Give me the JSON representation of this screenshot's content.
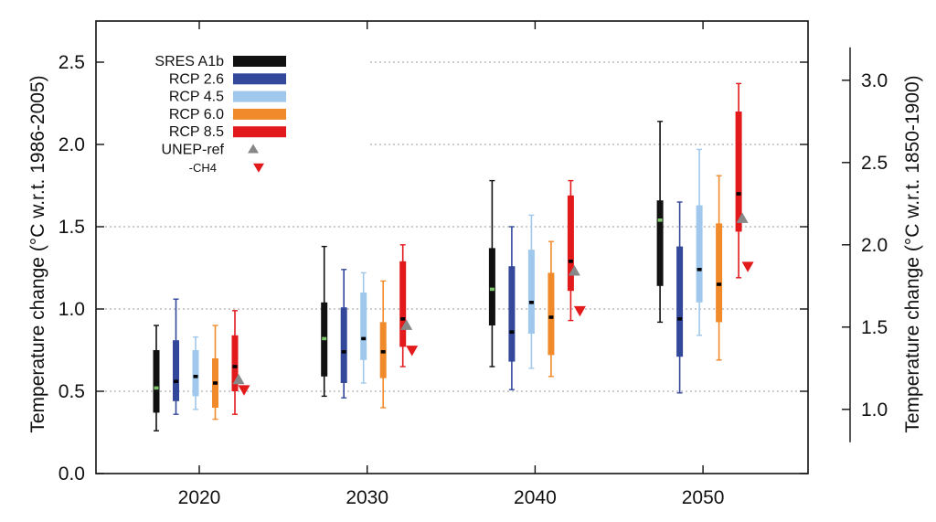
{
  "chart_data": {
    "type": "boxplot",
    "xlabel": "",
    "ylabel": "Temperature change (°C w.r.t. 1986-2005)",
    "ylabel_right": "Temperature change (°C w.r.t. 1850-1900)",
    "ylim": [
      0.0,
      2.75
    ],
    "yticks": [
      "0.0",
      "0.5",
      "1.0",
      "1.5",
      "2.0",
      "2.5"
    ],
    "ytick_values": [
      0.0,
      0.5,
      1.0,
      1.5,
      2.0,
      2.5
    ],
    "right_ylim": [
      0.61,
      3.36
    ],
    "right_yticks": [
      "1.0",
      "1.5",
      "2.0",
      "2.5",
      "3.0"
    ],
    "right_ytick_values": [
      1.0,
      1.5,
      2.0,
      2.5,
      3.0
    ],
    "right_axis_range": [
      0.8,
      3.2
    ],
    "categories": [
      "2020",
      "2030",
      "2040",
      "2050"
    ],
    "grid": true,
    "legend_position": "top-left",
    "series": [
      {
        "name": "SRES A1b",
        "color": "#111111",
        "median_color": "#7cc46a",
        "boxes": [
          {
            "min": 0.26,
            "q1": 0.37,
            "median": 0.52,
            "q3": 0.75,
            "max": 0.9
          },
          {
            "min": 0.47,
            "q1": 0.59,
            "median": 0.82,
            "q3": 1.04,
            "max": 1.38
          },
          {
            "min": 0.65,
            "q1": 0.9,
            "median": 1.12,
            "q3": 1.37,
            "max": 1.78
          },
          {
            "min": 0.92,
            "q1": 1.14,
            "median": 1.54,
            "q3": 1.66,
            "max": 2.14
          }
        ]
      },
      {
        "name": "RCP 2.6",
        "color": "#34489b",
        "median_color": "#000000",
        "boxes": [
          {
            "min": 0.36,
            "q1": 0.44,
            "median": 0.56,
            "q3": 0.81,
            "max": 1.06
          },
          {
            "min": 0.46,
            "q1": 0.55,
            "median": 0.74,
            "q3": 1.01,
            "max": 1.24
          },
          {
            "min": 0.51,
            "q1": 0.68,
            "median": 0.86,
            "q3": 1.26,
            "max": 1.5
          },
          {
            "min": 0.49,
            "q1": 0.71,
            "median": 0.94,
            "q3": 1.38,
            "max": 1.65
          }
        ]
      },
      {
        "name": "RCP 4.5",
        "color": "#9fc8ec",
        "median_color": "#000000",
        "boxes": [
          {
            "min": 0.39,
            "q1": 0.47,
            "median": 0.59,
            "q3": 0.75,
            "max": 0.83
          },
          {
            "min": 0.55,
            "q1": 0.69,
            "median": 0.82,
            "q3": 1.1,
            "max": 1.22
          },
          {
            "min": 0.64,
            "q1": 0.85,
            "median": 1.04,
            "q3": 1.36,
            "max": 1.57
          },
          {
            "min": 0.84,
            "q1": 1.04,
            "median": 1.24,
            "q3": 1.63,
            "max": 1.97
          }
        ]
      },
      {
        "name": "RCP 6.0",
        "color": "#f08a2b",
        "median_color": "#000000",
        "boxes": [
          {
            "min": 0.33,
            "q1": 0.4,
            "median": 0.55,
            "q3": 0.7,
            "max": 0.9
          },
          {
            "min": 0.4,
            "q1": 0.58,
            "median": 0.74,
            "q3": 0.92,
            "max": 1.17
          },
          {
            "min": 0.59,
            "q1": 0.72,
            "median": 0.95,
            "q3": 1.22,
            "max": 1.41
          },
          {
            "min": 0.69,
            "q1": 0.92,
            "median": 1.15,
            "q3": 1.52,
            "max": 1.81
          }
        ]
      },
      {
        "name": "RCP 8.5",
        "color": "#e31a1c",
        "median_color": "#000000",
        "boxes": [
          {
            "min": 0.36,
            "q1": 0.5,
            "median": 0.65,
            "q3": 0.84,
            "max": 0.99
          },
          {
            "min": 0.65,
            "q1": 0.77,
            "median": 0.94,
            "q3": 1.29,
            "max": 1.39
          },
          {
            "min": 0.93,
            "q1": 1.11,
            "median": 1.29,
            "q3": 1.69,
            "max": 1.78
          },
          {
            "min": 1.19,
            "q1": 1.47,
            "median": 1.7,
            "q3": 2.2,
            "max": 2.37
          }
        ]
      }
    ],
    "markers": [
      {
        "name": "UNEP-ref",
        "shape": "triangle-up",
        "color": "#888888",
        "values": [
          0.57,
          0.9,
          1.23,
          1.55
        ]
      },
      {
        "name": "-CH4",
        "shape": "triangle-down",
        "color": "#e31a1c",
        "values": [
          0.51,
          0.75,
          0.99,
          1.26
        ]
      }
    ]
  }
}
